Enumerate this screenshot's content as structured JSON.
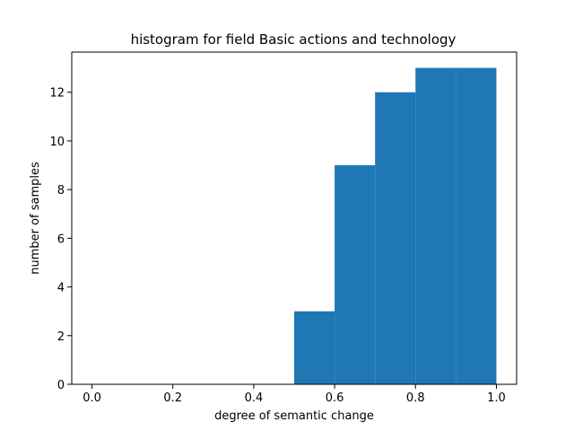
{
  "chart_data": {
    "type": "bar",
    "title": "histogram for field Basic actions and technology",
    "xlabel": "degree of semantic change",
    "ylabel": "number of samples",
    "bin_edges": [
      0.5,
      0.6,
      0.7,
      0.8,
      0.9,
      1.0
    ],
    "values": [
      3,
      9,
      12,
      13,
      13
    ],
    "xlim": [
      -0.05,
      1.05
    ],
    "ylim": [
      0,
      13.65
    ],
    "x_ticks": [
      "0.0",
      "0.2",
      "0.4",
      "0.6",
      "0.8",
      "1.0"
    ],
    "y_ticks": [
      "0",
      "2",
      "4",
      "6",
      "8",
      "10",
      "12"
    ],
    "bar_color": "#1f77b4",
    "grid": false,
    "legend": "none"
  }
}
